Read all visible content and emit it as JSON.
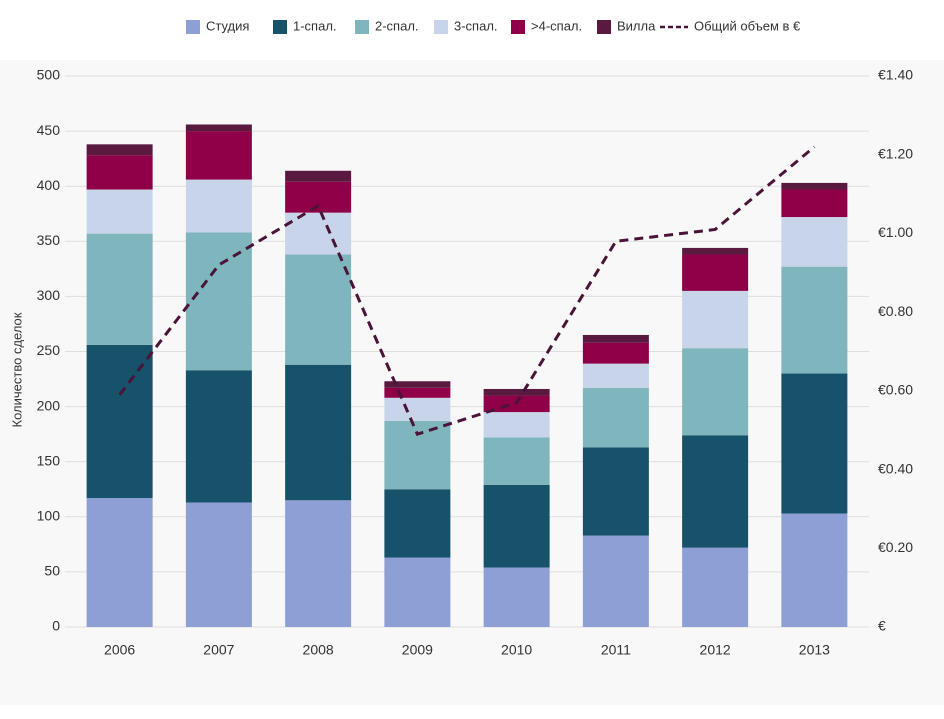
{
  "chart_data": {
    "type": "bar",
    "stacked": true,
    "grid": true,
    "ylabel": "Количество сделок",
    "categories": [
      "2006",
      "2007",
      "2008",
      "2009",
      "2010",
      "2011",
      "2012",
      "2013"
    ],
    "ylim": [
      0,
      500
    ],
    "yticks": [
      0,
      50,
      100,
      150,
      200,
      250,
      300,
      350,
      400,
      450,
      500
    ],
    "y2lim": [
      0,
      1.4
    ],
    "y2ticks": [
      {
        "value": 0,
        "label": "€"
      },
      {
        "value": 0.2,
        "label": "€0.20"
      },
      {
        "value": 0.4,
        "label": "€0.40"
      },
      {
        "value": 0.6,
        "label": "€0.60"
      },
      {
        "value": 0.8,
        "label": "€0.80"
      },
      {
        "value": 1.0,
        "label": "€1.00"
      },
      {
        "value": 1.2,
        "label": "€1.20"
      },
      {
        "value": 1.4,
        "label": "€1.40"
      }
    ],
    "series": [
      {
        "name": "Студия",
        "color": "#8d9fd5",
        "values": [
          117,
          113,
          115,
          63,
          54,
          83,
          72,
          103
        ]
      },
      {
        "name": "1-спал.",
        "color": "#16526a",
        "values": [
          139,
          120,
          123,
          62,
          75,
          80,
          102,
          127
        ]
      },
      {
        "name": "2-спал.",
        "color": "#7fb5bd",
        "values": [
          101,
          125,
          100,
          62,
          43,
          54,
          79,
          97
        ]
      },
      {
        "name": "3-спал.",
        "color": "#c8d4ea",
        "values": [
          40,
          48,
          38,
          21,
          23,
          22,
          52,
          45
        ]
      },
      {
        "name": ">4-спал.",
        "color": "#8f0048",
        "values": [
          31,
          44,
          28,
          9,
          15,
          19,
          33,
          25
        ]
      },
      {
        "name": "Вилла",
        "color": "#5a1a40",
        "values": [
          10,
          6,
          10,
          6,
          6,
          7,
          6,
          6
        ]
      },
      {
        "name": "Общий объем в €",
        "color": "#4a1438",
        "type": "line",
        "dashed": true,
        "axis": "y2",
        "values": [
          0.59,
          0.92,
          1.07,
          0.49,
          0.57,
          0.98,
          1.01,
          1.22
        ]
      }
    ]
  }
}
